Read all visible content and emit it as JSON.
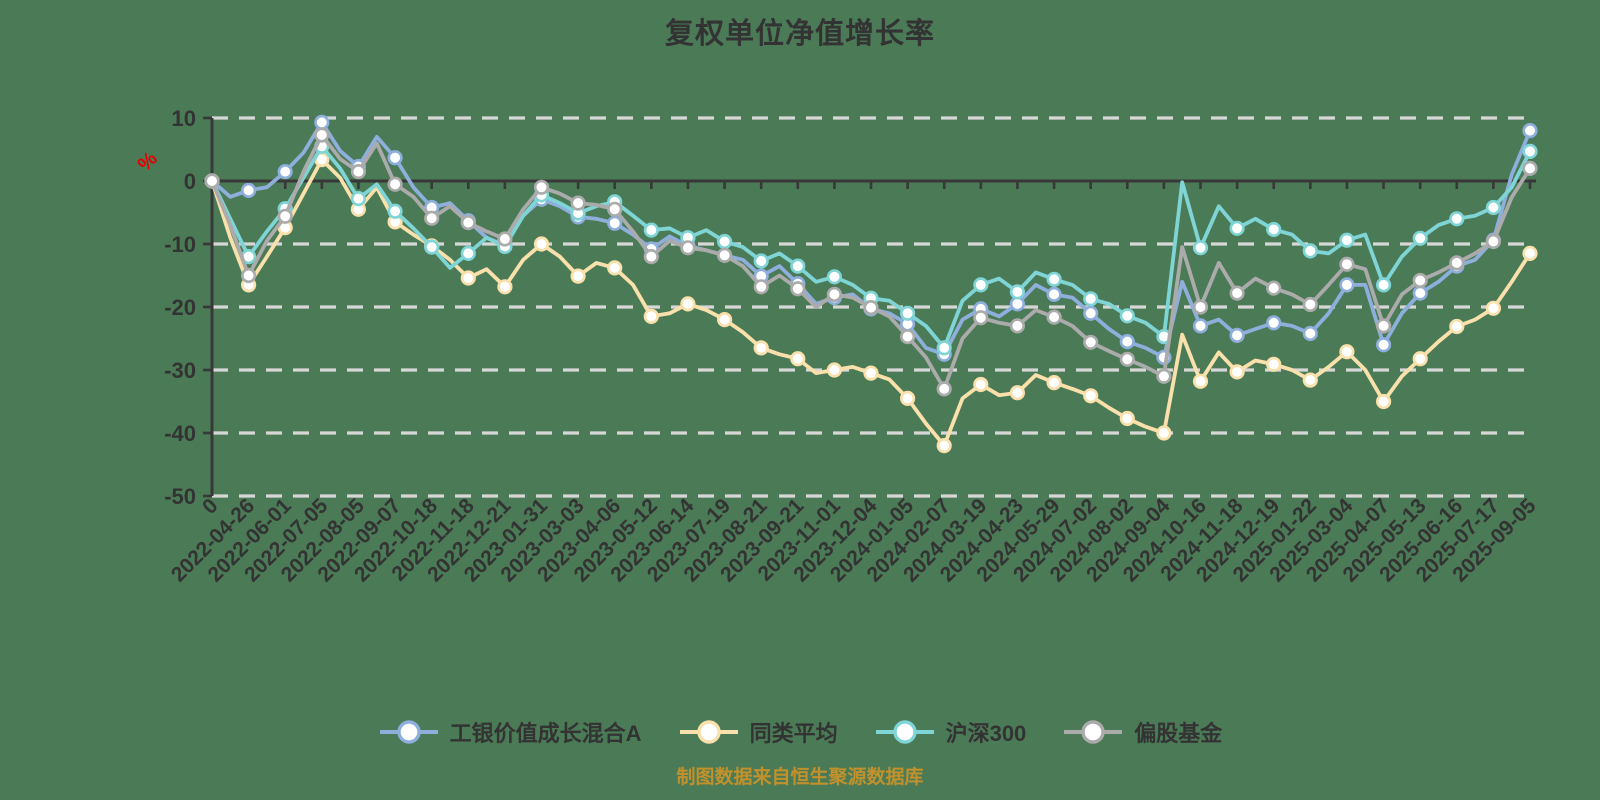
{
  "caption": "制图数据来自恒生聚源数据库",
  "colors": {
    "background": "#4B7A56",
    "axis": "#383838",
    "grid": "#D7D7D7",
    "tick_text": "#333333",
    "unit_label": "#E60000",
    "caption_text": "#C0912C",
    "marker_fill": "#FFFFFF"
  },
  "chart_data": {
    "type": "line",
    "title": "复权单位净值增长率",
    "y_unit": "%",
    "ylim": [
      -50,
      10
    ],
    "y_ticks": [
      10,
      0,
      -10,
      -20,
      -30,
      -40,
      -50
    ],
    "grid": "horizontal dashed",
    "legend_position": "bottom",
    "x_tick_labels": [
      "0",
      "2022-04-26",
      "2022-06-01",
      "2022-07-05",
      "2022-08-05",
      "2022-09-07",
      "2022-10-18",
      "2022-11-18",
      "2022-12-21",
      "2023-01-31",
      "2023-03-03",
      "2023-04-06",
      "2023-05-12",
      "2023-06-14",
      "2023-07-19",
      "2023-08-21",
      "2023-09-21",
      "2023-11-01",
      "2023-12-04",
      "2024-01-05",
      "2024-02-07",
      "2024-03-19",
      "2024-04-23",
      "2024-05-29",
      "2024-07-02",
      "2024-08-02",
      "2024-09-04",
      "2024-10-16",
      "2024-11-18",
      "2024-12-19",
      "2025-01-22",
      "2025-03-04",
      "2025-04-07",
      "2025-05-13",
      "2025-06-16",
      "2025-07-17",
      "2025-09-05"
    ],
    "sampling": "73 samples per series: even indices fall on the 37 x tick labels, odd indices are midpoints between adjacent ticks; values are cumulative growth in %",
    "series": [
      {
        "name": "工银价值成长混合A",
        "color": "#8EAEDC",
        "values": [
          0,
          -2.5,
          -1.5,
          -1.0,
          1.5,
          4.5,
          9.3,
          4.8,
          2.3,
          7.0,
          3.7,
          -1.0,
          -4.2,
          -3.5,
          -6.3,
          -9.0,
          -10.2,
          -5.5,
          -2.9,
          -4.0,
          -5.7,
          -6.0,
          -6.7,
          -8.5,
          -10.8,
          -8.8,
          -10.3,
          -11.0,
          -11.8,
          -12.5,
          -15.1,
          -13.5,
          -16.3,
          -19.5,
          -18.5,
          -18.0,
          -20.3,
          -21.0,
          -22.7,
          -26.5,
          -27.5,
          -22.0,
          -20.3,
          -21.5,
          -19.5,
          -16.5,
          -18.0,
          -18.5,
          -21.0,
          -23.5,
          -25.5,
          -26.5,
          -28.0,
          -16.0,
          -23.0,
          -22.0,
          -24.5,
          -23.5,
          -22.5,
          -23.0,
          -24.2,
          -21.0,
          -16.5,
          -16.5,
          -26.0,
          -21.0,
          -17.8,
          -16.0,
          -13.5,
          -12.5,
          -9.4,
          1.0,
          8.0
        ]
      },
      {
        "name": "同类平均",
        "color": "#FAE0AB",
        "values": [
          0,
          -9.0,
          -16.5,
          -12.0,
          -7.4,
          -2.0,
          3.4,
          0.5,
          -4.5,
          -1.0,
          -6.5,
          -8.5,
          -10.3,
          -12.5,
          -15.4,
          -14.0,
          -16.8,
          -12.5,
          -10.0,
          -12.0,
          -15.1,
          -13.0,
          -13.8,
          -16.5,
          -21.5,
          -21.0,
          -19.5,
          -20.5,
          -22.0,
          -24.0,
          -26.5,
          -27.5,
          -28.2,
          -30.5,
          -30.0,
          -29.5,
          -30.5,
          -31.5,
          -34.5,
          -38.5,
          -42.0,
          -34.5,
          -32.3,
          -34.0,
          -33.6,
          -30.8,
          -32.0,
          -33.0,
          -34.1,
          -36.0,
          -37.7,
          -39.0,
          -40.0,
          -24.4,
          -31.8,
          -27.2,
          -30.3,
          -28.5,
          -29.1,
          -30.0,
          -31.6,
          -29.5,
          -27.1,
          -30.0,
          -35.0,
          -31.0,
          -28.2,
          -25.5,
          -23.1,
          -22.0,
          -20.2,
          -16.0,
          -11.5
        ]
      },
      {
        "name": "沪深300",
        "color": "#7FD4D6",
        "values": [
          0,
          -6.0,
          -12.0,
          -8.0,
          -4.4,
          0.5,
          5.5,
          2.0,
          -2.8,
          -0.5,
          -4.8,
          -7.5,
          -10.5,
          -13.8,
          -11.5,
          -9.0,
          -10.4,
          -5.5,
          -2.2,
          -3.5,
          -5.1,
          -4.0,
          -3.3,
          -5.5,
          -7.8,
          -7.5,
          -9.0,
          -7.8,
          -9.6,
          -10.5,
          -12.7,
          -11.5,
          -13.5,
          -16.0,
          -15.2,
          -16.5,
          -18.6,
          -19.0,
          -21.0,
          -23.0,
          -26.5,
          -19.0,
          -16.5,
          -15.5,
          -17.6,
          -14.5,
          -15.6,
          -16.5,
          -18.7,
          -19.5,
          -21.4,
          -22.5,
          -24.7,
          -0.2,
          -10.6,
          -4.0,
          -7.5,
          -6.0,
          -7.7,
          -8.5,
          -11.1,
          -11.5,
          -9.4,
          -8.5,
          -16.5,
          -12.0,
          -9.1,
          -7.0,
          -6.0,
          -5.5,
          -4.2,
          -1.0,
          4.7
        ]
      },
      {
        "name": "偏股基金",
        "color": "#ABABAB",
        "values": [
          0,
          -7.0,
          -15.0,
          -9.5,
          -5.6,
          1.5,
          7.3,
          3.5,
          1.5,
          6.0,
          -0.5,
          -2.5,
          -5.9,
          -4.0,
          -6.6,
          -8.0,
          -9.2,
          -4.5,
          -1.0,
          -2.0,
          -3.5,
          -3.8,
          -4.5,
          -8.0,
          -12.0,
          -9.5,
          -10.6,
          -11.0,
          -11.8,
          -13.5,
          -16.8,
          -15.0,
          -17.1,
          -20.0,
          -18.0,
          -18.5,
          -20.1,
          -21.5,
          -24.7,
          -28.0,
          -33.0,
          -25.0,
          -21.7,
          -22.5,
          -23.0,
          -20.5,
          -21.6,
          -23.0,
          -25.6,
          -27.0,
          -28.3,
          -29.5,
          -31.0,
          -10.5,
          -20.0,
          -13.0,
          -17.8,
          -15.5,
          -17.0,
          -18.0,
          -19.6,
          -16.5,
          -13.2,
          -14.0,
          -23.0,
          -18.0,
          -15.8,
          -14.5,
          -13.0,
          -11.5,
          -9.6,
          -2.6,
          2.0
        ]
      }
    ]
  }
}
